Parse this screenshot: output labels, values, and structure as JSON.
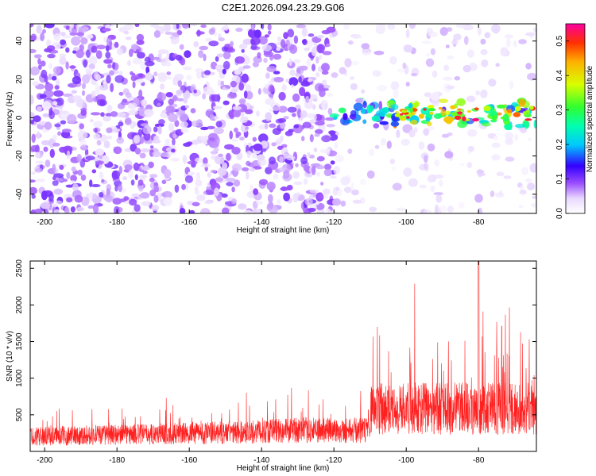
{
  "title": "C2E1.2026.094.23.29.G06",
  "chart_data": [
    {
      "type": "heatmap",
      "name": "spectrogram",
      "xlabel": "Height of straight line (km)",
      "ylabel": "Frequency (Hz)",
      "xlim": [
        -204,
        -64
      ],
      "ylim": [
        -50,
        49
      ],
      "xticks": [
        -200,
        -180,
        -160,
        -140,
        -120,
        -100,
        -80
      ],
      "yticks": [
        -40,
        -20,
        0,
        20,
        40
      ],
      "colorbar": {
        "label": "Normalized spectral amplitude",
        "range": [
          0,
          0.55
        ],
        "ticks": [
          0.0,
          0.1,
          0.2,
          0.3,
          0.4,
          0.5
        ]
      },
      "features": {
        "broadband_noise_region_km": [
          -204,
          -120
        ],
        "sparse_region_km": [
          -112,
          -64
        ],
        "signal_band_start_km": -128,
        "signal_band_center_hz": 2,
        "signal_band_halfwidth_hz": 6,
        "peak_amplitude": 0.55,
        "peak_at_km": -86
      }
    },
    {
      "type": "line",
      "name": "snr",
      "xlabel": "Height of straight line (km)",
      "ylabel": "SNR (10 * v/v)",
      "xlim": [
        -204,
        -64
      ],
      "ylim": [
        0,
        2600
      ],
      "xticks": [
        -200,
        -180,
        -160,
        -140,
        -120,
        -100,
        -80
      ],
      "yticks": [
        500,
        1000,
        1500,
        2000,
        2500
      ],
      "color": "#ff2020",
      "series_summary": {
        "baseline_low_km": [
          -204,
          -140
        ],
        "baseline_low_mean": 230,
        "baseline_mid_mean": 320,
        "rise_start_km": -110,
        "high_region_mean": 650,
        "peak_value": 2600,
        "peak_at_km": -80
      }
    }
  ]
}
